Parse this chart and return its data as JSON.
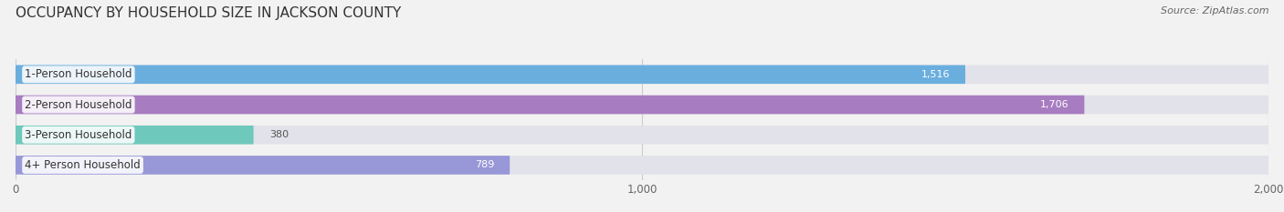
{
  "title": "OCCUPANCY BY HOUSEHOLD SIZE IN JACKSON COUNTY",
  "source": "Source: ZipAtlas.com",
  "categories": [
    "1-Person Household",
    "2-Person Household",
    "3-Person Household",
    "4+ Person Household"
  ],
  "values": [
    1516,
    1706,
    380,
    789
  ],
  "bar_colors": [
    "#6aaede",
    "#a87cc0",
    "#6ec8bc",
    "#9898d8"
  ],
  "xlim": [
    0,
    2000
  ],
  "xticks": [
    0,
    1000,
    2000
  ],
  "xtick_labels": [
    "0",
    "1,000",
    "2,000"
  ],
  "background_color": "#f2f2f2",
  "bar_background_color": "#e2e2ea",
  "title_fontsize": 11,
  "label_fontsize": 8.5,
  "value_fontsize": 8,
  "source_fontsize": 8
}
